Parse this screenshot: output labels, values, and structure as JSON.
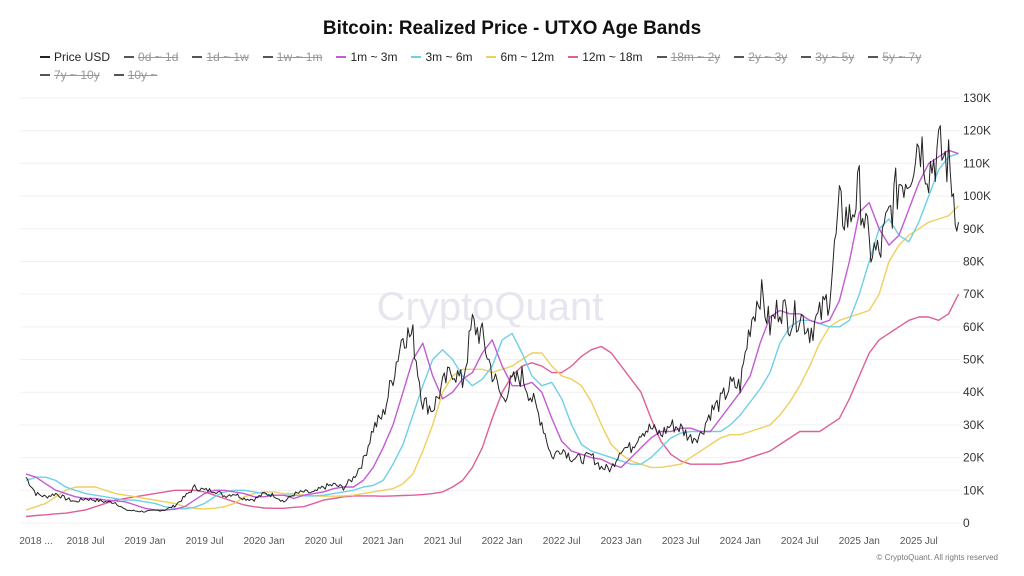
{
  "chart_data": {
    "type": "line",
    "title": "Bitcoin: Realized Price - UTXO Age Bands",
    "x_start": "2018-01",
    "x_interval": "monthly",
    "x_tick_labels": [
      "2018 ...",
      "2018 Jul",
      "2019 Jan",
      "2019 Jul",
      "2020 Jan",
      "2020 Jul",
      "2021 Jan",
      "2021 Jul",
      "2022 Jan",
      "2022 Jul",
      "2023 Jan",
      "2023 Jul",
      "2024 Jan",
      "2024 Jul",
      "2025 Jan",
      "2025 Jul"
    ],
    "y_tick_labels": [
      "0",
      "10K",
      "20K",
      "30K",
      "40K",
      "50K",
      "60K",
      "70K",
      "80K",
      "90K",
      "100K",
      "110K",
      "120K",
      "130K"
    ],
    "ylim": [
      0,
      130000
    ],
    "y_axis_side": "right",
    "grid": true,
    "legend_position": "top",
    "legend": [
      {
        "name": "Price USD",
        "active": true,
        "color": "#222222"
      },
      {
        "name": "0d ~ 1d",
        "active": false
      },
      {
        "name": "1d ~ 1w",
        "active": false
      },
      {
        "name": "1w ~ 1m",
        "active": false
      },
      {
        "name": "1m ~ 3m",
        "active": true,
        "color": "#c45ad4"
      },
      {
        "name": "3m ~ 6m",
        "active": true,
        "color": "#6fcfe6"
      },
      {
        "name": "6m ~ 12m",
        "active": true,
        "color": "#efcf5e"
      },
      {
        "name": "12m ~ 18m",
        "active": true,
        "color": "#df5f98"
      },
      {
        "name": "18m ~ 2y",
        "active": false
      },
      {
        "name": "2y ~ 3y",
        "active": false
      },
      {
        "name": "3y ~ 5y",
        "active": false
      },
      {
        "name": "5y ~ 7y",
        "active": false
      },
      {
        "name": "7y ~ 10y",
        "active": false
      },
      {
        "name": "10y ~",
        "active": false
      }
    ],
    "series": [
      {
        "name": "Price USD",
        "color": "#222222",
        "values": [
          14000,
          9000,
          8000,
          9000,
          7500,
          6500,
          7500,
          7000,
          6500,
          6300,
          4000,
          3700,
          3500,
          3800,
          4000,
          5300,
          8000,
          11000,
          10000,
          10000,
          8300,
          9000,
          7500,
          7200,
          9000,
          8500,
          6500,
          8800,
          9500,
          9200,
          11000,
          11700,
          10800,
          13800,
          19000,
          29000,
          33000,
          45000,
          58000,
          57000,
          37000,
          35000,
          42000,
          47000,
          43000,
          61000,
          57000,
          46000,
          38000,
          43000,
          45000,
          38000,
          31000,
          20000,
          23000,
          20000,
          19500,
          20500,
          17000,
          16500,
          23000,
          23000,
          28000,
          29000,
          27000,
          30000,
          29000,
          26000,
          27000,
          34000,
          37000,
          42000,
          42000,
          61000,
          71000,
          60000,
          67000,
          62000,
          64000,
          59000,
          63000,
          70000,
          96000,
          93000,
          102000,
          84000,
          82000,
          94000,
          104000,
          107000,
          118000,
          108000,
          114000,
          110000,
          92000
        ]
      },
      {
        "name": "1m ~ 3m",
        "color": "#c45ad4",
        "values": [
          15000,
          14000,
          12000,
          10000,
          9000,
          8000,
          7500,
          7500,
          7000,
          6800,
          6500,
          5500,
          4500,
          4000,
          4000,
          4200,
          5000,
          7000,
          9000,
          10000,
          10000,
          9500,
          9000,
          8000,
          8000,
          8500,
          8500,
          7500,
          8500,
          9000,
          9500,
          10500,
          11000,
          11000,
          13000,
          17000,
          23000,
          30000,
          40000,
          50000,
          55000,
          45000,
          38000,
          40000,
          44000,
          46000,
          52000,
          56000,
          48000,
          42000,
          42000,
          43000,
          40000,
          32000,
          25000,
          22000,
          21000,
          20000,
          19500,
          18000,
          17000,
          20000,
          23000,
          26000,
          28000,
          28000,
          29000,
          29000,
          28000,
          28000,
          32000,
          36000,
          40000,
          45000,
          55000,
          63000,
          65000,
          64000,
          64000,
          62000,
          61000,
          62000,
          68000,
          80000,
          95000,
          98000,
          90000,
          85000,
          88000,
          96000,
          104000,
          110000,
          112000,
          114000,
          113000
        ]
      },
      {
        "name": "3m ~ 6m",
        "color": "#6fcfe6",
        "values": [
          13000,
          14000,
          14000,
          13000,
          11000,
          10000,
          9000,
          8500,
          8000,
          7500,
          7000,
          7000,
          6500,
          6000,
          5000,
          4500,
          4300,
          4800,
          6000,
          8000,
          9500,
          10000,
          10000,
          9500,
          9000,
          8500,
          8500,
          8500,
          8300,
          8300,
          8500,
          9000,
          9500,
          10000,
          11000,
          11500,
          13000,
          18000,
          24000,
          33000,
          42000,
          50000,
          53000,
          50000,
          45000,
          42000,
          44000,
          48000,
          56000,
          58000,
          52000,
          45000,
          42000,
          43000,
          38000,
          30000,
          24000,
          22000,
          21000,
          20000,
          19000,
          18000,
          18000,
          20000,
          23000,
          26000,
          27500,
          28000,
          28000,
          28000,
          28000,
          30000,
          33000,
          37000,
          41000,
          46000,
          55000,
          60000,
          62000,
          62000,
          61000,
          60000,
          60000,
          62000,
          70000,
          80000,
          90000,
          93000,
          88000,
          86000,
          92000,
          100000,
          108000,
          112000,
          113000
        ]
      },
      {
        "name": "6m ~ 12m",
        "color": "#efcf5e",
        "values": [
          4000,
          5000,
          6000,
          8000,
          10000,
          11000,
          11000,
          11000,
          10000,
          9000,
          8500,
          8000,
          7500,
          7000,
          6500,
          6000,
          5000,
          4500,
          4300,
          4500,
          5000,
          6000,
          8000,
          9000,
          9500,
          9500,
          9000,
          9000,
          8500,
          8300,
          8200,
          8200,
          8300,
          8500,
          9000,
          9500,
          10000,
          10500,
          12000,
          15000,
          22000,
          30000,
          40000,
          45000,
          47000,
          47000,
          47000,
          46000,
          47000,
          48000,
          50000,
          52000,
          52000,
          48000,
          45000,
          44000,
          42000,
          37000,
          30000,
          24000,
          21000,
          19000,
          18000,
          17000,
          17000,
          17500,
          18000,
          20000,
          22000,
          24000,
          26000,
          27000,
          27000,
          28000,
          29000,
          30000,
          33000,
          37000,
          42000,
          48000,
          55000,
          60000,
          62000,
          63000,
          64000,
          65000,
          70000,
          80000,
          85000,
          88000,
          90000,
          92000,
          93000,
          94000,
          97000
        ]
      },
      {
        "name": "12m ~ 18m",
        "color": "#df5f98",
        "values": [
          2000,
          2300,
          2500,
          2800,
          3000,
          3500,
          4000,
          5000,
          6000,
          7000,
          7500,
          8000,
          8500,
          9000,
          9500,
          10000,
          10000,
          10000,
          9500,
          8500,
          7500,
          6500,
          5500,
          5000,
          4600,
          4500,
          4500,
          4800,
          5000,
          6000,
          7000,
          7500,
          8000,
          8300,
          8300,
          8300,
          8200,
          8300,
          8400,
          8500,
          8700,
          9000,
          9500,
          11000,
          13000,
          17000,
          23000,
          32000,
          40000,
          45000,
          48000,
          49000,
          48000,
          46000,
          46000,
          48000,
          51000,
          53000,
          54000,
          52000,
          48000,
          44000,
          40000,
          32000,
          25000,
          21000,
          19000,
          18000,
          18000,
          18000,
          18000,
          18500,
          19000,
          20000,
          21000,
          22000,
          24000,
          26000,
          28000,
          28000,
          28000,
          30000,
          32000,
          38000,
          45000,
          52000,
          56000,
          58000,
          60000,
          62000,
          63000,
          63000,
          62000,
          64000,
          70000
        ]
      }
    ]
  },
  "watermark": "CryptoQuant",
  "copyright": "© CryptoQuant. All rights reserved"
}
